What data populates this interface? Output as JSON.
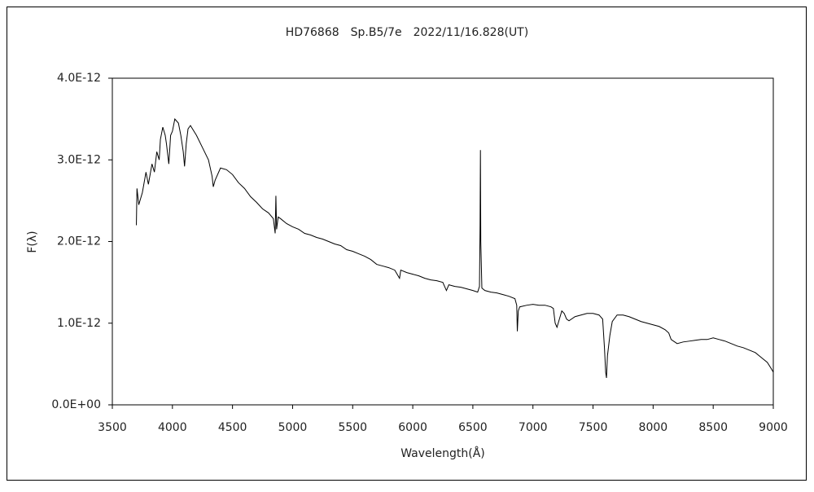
{
  "chart_data": {
    "type": "line",
    "title": "HD76868　Sp.B5/7e　2022/11/16.828(UT)",
    "x_label": "Wavelength(Å)",
    "y_label": "F(λ)",
    "color": "#000000",
    "x": [
      3700,
      3705,
      3720,
      3750,
      3780,
      3800,
      3830,
      3850,
      3870,
      3890,
      3900,
      3920,
      3940,
      3950,
      3970,
      3985,
      4000,
      4020,
      4050,
      4070,
      4090,
      4101,
      4115,
      4130,
      4150,
      4200,
      4250,
      4300,
      4330,
      4340,
      4355,
      4400,
      4450,
      4500,
      4550,
      4600,
      4650,
      4700,
      4750,
      4800,
      4840,
      4855,
      4861,
      4867,
      4880,
      4900,
      4950,
      5000,
      5050,
      5100,
      5150,
      5200,
      5250,
      5300,
      5350,
      5400,
      5450,
      5500,
      5550,
      5600,
      5650,
      5700,
      5750,
      5800,
      5850,
      5890,
      5900,
      5950,
      6000,
      6050,
      6100,
      6150,
      6200,
      6250,
      6280,
      6300,
      6350,
      6400,
      6450,
      6500,
      6540,
      6555,
      6560,
      6563,
      6566,
      6575,
      6600,
      6650,
      6700,
      6750,
      6800,
      6850,
      6865,
      6870,
      6878,
      6890,
      6950,
      7000,
      7050,
      7100,
      7150,
      7170,
      7185,
      7200,
      7220,
      7240,
      7260,
      7280,
      7300,
      7350,
      7400,
      7450,
      7500,
      7550,
      7580,
      7595,
      7605,
      7612,
      7620,
      7640,
      7660,
      7700,
      7750,
      7800,
      7850,
      7900,
      7950,
      8000,
      8050,
      8100,
      8130,
      8150,
      8180,
      8200,
      8250,
      8300,
      8350,
      8400,
      8450,
      8500,
      8550,
      8600,
      8650,
      8700,
      8750,
      8800,
      8850,
      8900,
      8950,
      8980,
      9000
    ],
    "values": [
      2.2e-12,
      2.65e-12,
      2.45e-12,
      2.6e-12,
      2.85e-12,
      2.7e-12,
      2.95e-12,
      2.85e-12,
      3.1e-12,
      3e-12,
      3.25e-12,
      3.4e-12,
      3.3e-12,
      3.2e-12,
      2.95e-12,
      3.3e-12,
      3.35e-12,
      3.5e-12,
      3.45e-12,
      3.3e-12,
      3.1e-12,
      2.92e-12,
      3.2e-12,
      3.38e-12,
      3.42e-12,
      3.3e-12,
      3.15e-12,
      3e-12,
      2.8e-12,
      2.67e-12,
      2.75e-12,
      2.9e-12,
      2.88e-12,
      2.82e-12,
      2.72e-12,
      2.65e-12,
      2.55e-12,
      2.48e-12,
      2.4e-12,
      2.35e-12,
      2.28e-12,
      2.1e-12,
      2.56e-12,
      2.15e-12,
      2.3e-12,
      2.28e-12,
      2.22e-12,
      2.18e-12,
      2.15e-12,
      2.1e-12,
      2.08e-12,
      2.05e-12,
      2.03e-12,
      2e-12,
      1.97e-12,
      1.95e-12,
      1.9e-12,
      1.88e-12,
      1.85e-12,
      1.82e-12,
      1.78e-12,
      1.72e-12,
      1.7e-12,
      1.68e-12,
      1.65e-12,
      1.55e-12,
      1.65e-12,
      1.62e-12,
      1.6e-12,
      1.58e-12,
      1.55e-12,
      1.53e-12,
      1.52e-12,
      1.5e-12,
      1.4e-12,
      1.47e-12,
      1.45e-12,
      1.44e-12,
      1.42e-12,
      1.4e-12,
      1.38e-12,
      1.45e-12,
      2.2e-12,
      3.12e-12,
      2e-12,
      1.43e-12,
      1.4e-12,
      1.38e-12,
      1.37e-12,
      1.35e-12,
      1.33e-12,
      1.3e-12,
      1.22e-12,
      9e-13,
      1.15e-12,
      1.2e-12,
      1.22e-12,
      1.23e-12,
      1.22e-12,
      1.22e-12,
      1.2e-12,
      1.18e-12,
      1e-12,
      9.5e-13,
      1.05e-12,
      1.15e-12,
      1.12e-12,
      1.05e-12,
      1.03e-12,
      1.08e-12,
      1.1e-12,
      1.12e-12,
      1.12e-12,
      1.1e-12,
      1.05e-12,
      7e-13,
      4e-13,
      3.3e-13,
      6e-13,
      8.5e-13,
      1.02e-12,
      1.1e-12,
      1.1e-12,
      1.08e-12,
      1.05e-12,
      1.02e-12,
      1e-12,
      9.8e-13,
      9.6e-13,
      9.2e-13,
      8.8e-13,
      8e-13,
      7.7e-13,
      7.5e-13,
      7.7e-13,
      7.8e-13,
      7.9e-13,
      8e-13,
      8e-13,
      8.2e-13,
      8e-13,
      7.8e-13,
      7.5e-13,
      7.2e-13,
      7e-13,
      6.7e-13,
      6.4e-13,
      5.8e-13,
      5.2e-13,
      4.5e-13,
      4e-13
    ],
    "xlim": [
      3500,
      9000
    ],
    "xticks": [
      3500,
      4000,
      4500,
      5000,
      5500,
      6000,
      6500,
      7000,
      7500,
      8000,
      8500,
      9000
    ],
    "ylim": [
      0,
      4e-12
    ],
    "yticks": [
      {
        "value": 0,
        "label": "0.0E+00"
      },
      {
        "value": 1e-12,
        "label": "1.0E-12"
      },
      {
        "value": 2e-12,
        "label": "2.0E-12"
      },
      {
        "value": 3e-12,
        "label": "3.0E-12"
      },
      {
        "value": 4e-12,
        "label": "4.0E-12"
      }
    ],
    "grid": false
  }
}
